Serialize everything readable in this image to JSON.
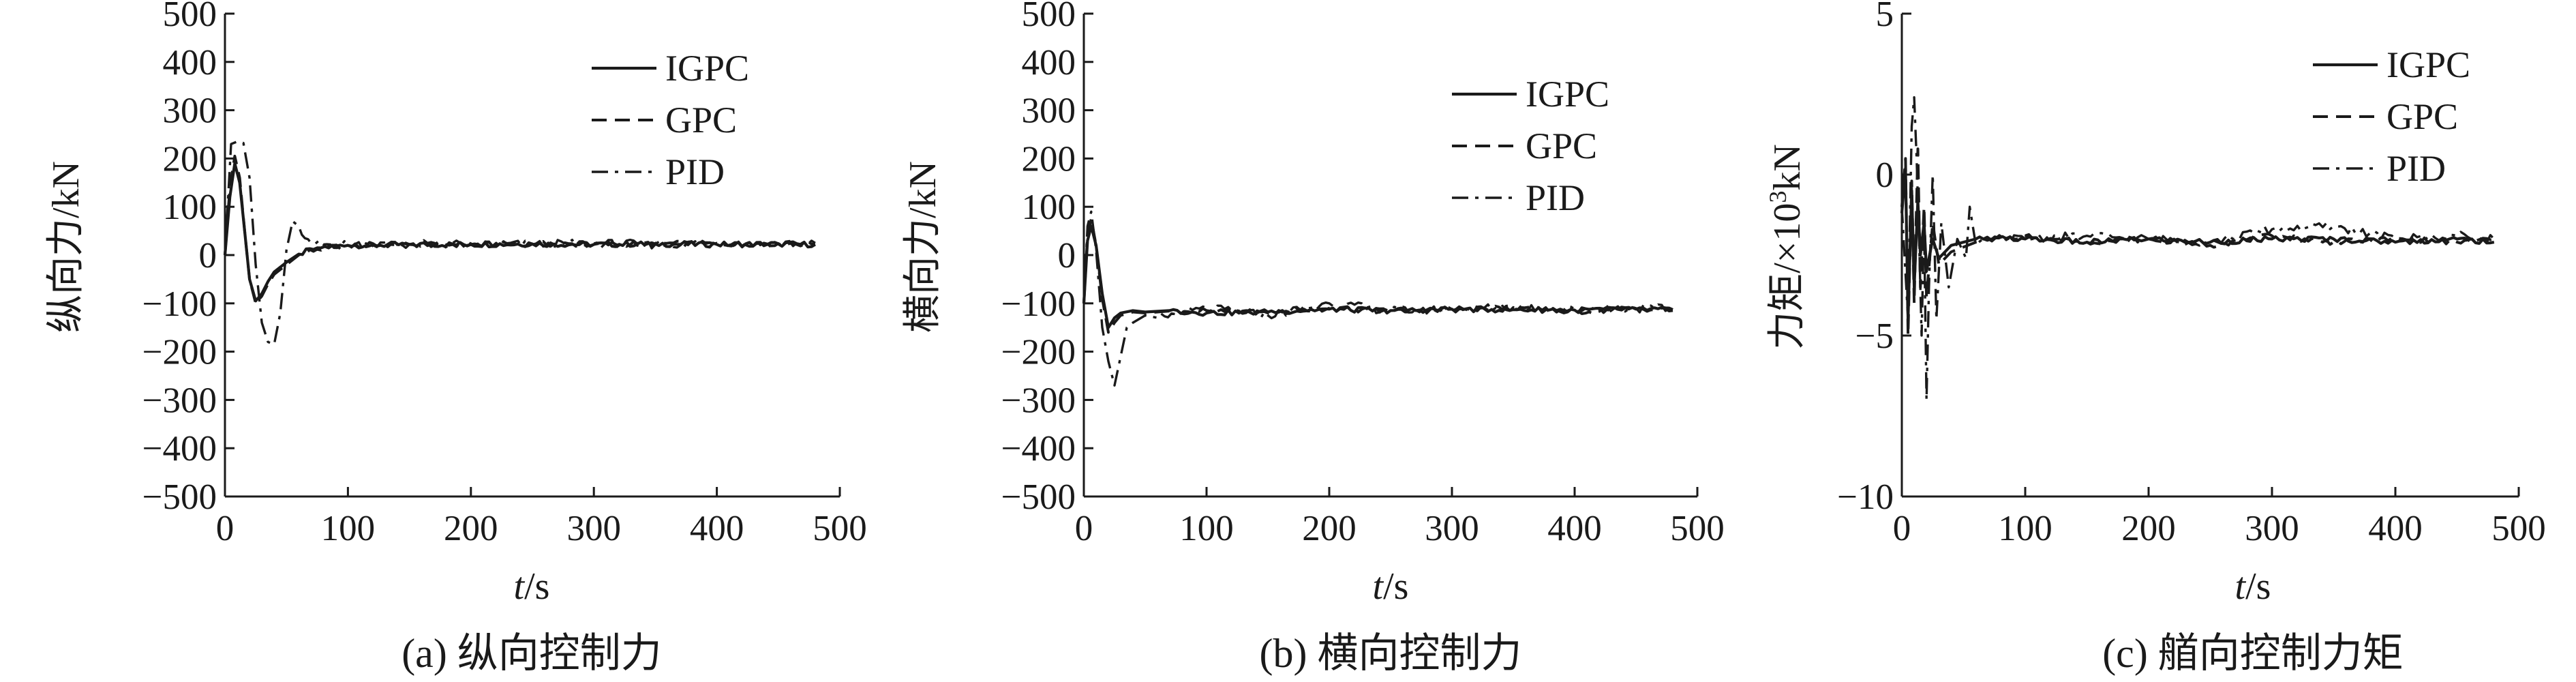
{
  "colors": {
    "ink": "#1a1a1a",
    "background": "#ffffff"
  },
  "chart_data": [
    {
      "type": "line",
      "caption": "(a) 纵向控制力",
      "xlabel_italic": "t",
      "xlabel_unit": "/s",
      "ylabel": "纵向力/kN",
      "xlim": [
        0,
        500
      ],
      "ylim": [
        -500,
        500
      ],
      "x_ticks": [
        "0",
        "100",
        "200",
        "300",
        "400",
        "500"
      ],
      "y_ticks": [
        "500",
        "400",
        "300",
        "200",
        "100",
        "0",
        "−100",
        "−200",
        "−300",
        "−400",
        "−500"
      ],
      "legend_position": "top-right",
      "grid": false,
      "series": [
        {
          "name": "IGPC",
          "style": "solid",
          "x": [
            0,
            4,
            8,
            12,
            16,
            20,
            25,
            30,
            35,
            40,
            50,
            60,
            75,
            100,
            150,
            200,
            250,
            300,
            350,
            400,
            450,
            480
          ],
          "y": [
            0,
            120,
            190,
            150,
            50,
            -50,
            -95,
            -80,
            -55,
            -35,
            -15,
            2,
            15,
            20,
            22,
            22,
            23,
            22,
            23,
            22,
            23,
            22
          ]
        },
        {
          "name": "GPC",
          "style": "dashed",
          "x": [
            0,
            4,
            8,
            12,
            16,
            20,
            25,
            30,
            35,
            40,
            50,
            60,
            75,
            100,
            150,
            200,
            250,
            300,
            350,
            400,
            450,
            480
          ],
          "y": [
            0,
            140,
            205,
            160,
            50,
            -50,
            -100,
            -85,
            -60,
            -40,
            -20,
            0,
            12,
            20,
            22,
            22,
            23,
            22,
            24,
            23,
            24,
            23
          ]
        },
        {
          "name": "PID",
          "style": "dashdot",
          "x": [
            0,
            5,
            10,
            15,
            20,
            25,
            30,
            35,
            40,
            45,
            50,
            55,
            60,
            65,
            70,
            80,
            100,
            150,
            200,
            250,
            300,
            350,
            400,
            450,
            480
          ],
          "y": [
            0,
            230,
            235,
            232,
            160,
            -20,
            -140,
            -180,
            -185,
            -120,
            10,
            70,
            60,
            35,
            25,
            22,
            22,
            22,
            23,
            22,
            24,
            22,
            25,
            24,
            25
          ]
        }
      ]
    },
    {
      "type": "line",
      "caption": "(b) 横向控制力",
      "xlabel_italic": "t",
      "xlabel_unit": "/s",
      "ylabel": "横向力/kN",
      "xlim": [
        0,
        500
      ],
      "ylim": [
        -500,
        500
      ],
      "x_ticks": [
        "0",
        "100",
        "200",
        "300",
        "400",
        "500"
      ],
      "y_ticks": [
        "500",
        "400",
        "300",
        "200",
        "100",
        "0",
        "−100",
        "−200",
        "−300",
        "−400",
        "−500"
      ],
      "legend_position": "top-right",
      "grid": false,
      "series": [
        {
          "name": "IGPC",
          "style": "solid",
          "x": [
            0,
            3,
            6,
            10,
            15,
            20,
            25,
            30,
            40,
            50,
            70,
            100,
            150,
            200,
            250,
            300,
            350,
            400,
            450,
            480
          ],
          "y": [
            -100,
            30,
            60,
            20,
            -80,
            -150,
            -130,
            -120,
            -115,
            -118,
            -115,
            -120,
            -118,
            -112,
            -115,
            -112,
            -113,
            -114,
            -112,
            -113
          ]
        },
        {
          "name": "GPC",
          "style": "dashed",
          "x": [
            0,
            3,
            6,
            10,
            15,
            20,
            25,
            30,
            40,
            50,
            70,
            100,
            150,
            200,
            250,
            300,
            350,
            400,
            450,
            480
          ],
          "y": [
            -100,
            40,
            75,
            20,
            -90,
            -160,
            -140,
            -125,
            -118,
            -120,
            -116,
            -115,
            -120,
            -110,
            -116,
            -112,
            -108,
            -118,
            -110,
            -115
          ]
        },
        {
          "name": "PID",
          "style": "dashdot",
          "x": [
            0,
            3,
            6,
            10,
            15,
            20,
            25,
            30,
            35,
            40,
            50,
            60,
            80,
            100,
            150,
            200,
            250,
            300,
            350,
            400,
            450,
            480
          ],
          "y": [
            -100,
            60,
            90,
            10,
            -150,
            -220,
            -270,
            -210,
            -150,
            -140,
            -125,
            -130,
            -120,
            -110,
            -125,
            -100,
            -115,
            -112,
            -108,
            -112,
            -110,
            -112
          ]
        }
      ]
    },
    {
      "type": "line",
      "caption": "(c) 艏向控制力矩",
      "xlabel_italic": "t",
      "xlabel_unit": "/s",
      "ylabel_main": "力矩/×10",
      "ylabel_sup": "3",
      "ylabel_tail": "kN",
      "xlim": [
        0,
        500
      ],
      "ylim": [
        -10,
        5
      ],
      "x_ticks": [
        "0",
        "100",
        "200",
        "300",
        "400",
        "500"
      ],
      "y_ticks": [
        "5",
        "0",
        "−5",
        "−10"
      ],
      "legend_position": "top-right",
      "grid": false,
      "series": [
        {
          "name": "IGPC",
          "style": "solid",
          "x": [
            0,
            3,
            5,
            8,
            10,
            13,
            15,
            18,
            20,
            25,
            30,
            40,
            60,
            100,
            150,
            200,
            250,
            300,
            350,
            400,
            450,
            480
          ],
          "y": [
            -1.2,
            0.2,
            -4.5,
            -0.5,
            -3.5,
            -0.8,
            -2.5,
            -1.5,
            -3.0,
            -2.0,
            -2.6,
            -2.2,
            -2.0,
            -2.0,
            -2.1,
            -2.0,
            -2.1,
            -2.0,
            -2.0,
            -2.1,
            -2.0,
            -2.1
          ]
        },
        {
          "name": "GPC",
          "style": "dashed",
          "x": [
            0,
            3,
            5,
            8,
            10,
            13,
            15,
            18,
            20,
            25,
            30,
            40,
            60,
            100,
            150,
            200,
            250,
            300,
            350,
            400,
            450,
            480
          ],
          "y": [
            -1.0,
            0.5,
            -5.0,
            -0.2,
            -4.0,
            0.8,
            -3.5,
            -1.0,
            -3.8,
            -1.5,
            -2.8,
            -2.4,
            -2.1,
            -1.9,
            -2.1,
            -2.0,
            -2.2,
            -1.9,
            -2.1,
            -2.0,
            -2.1,
            -2.0
          ]
        },
        {
          "name": "PID",
          "style": "dashdot",
          "x": [
            0,
            5,
            8,
            10,
            12,
            14,
            16,
            18,
            20,
            22,
            25,
            28,
            32,
            38,
            45,
            52,
            55,
            60,
            70,
            100,
            150,
            200,
            250,
            300,
            350,
            400,
            450,
            480
          ],
          "y": [
            -1.0,
            -4.5,
            1.5,
            2.4,
            0.5,
            -2.0,
            -5.0,
            -1.5,
            -7.0,
            -3.5,
            0.0,
            -4.5,
            -1.5,
            -3.5,
            -2.0,
            -2.6,
            -1.0,
            -2.2,
            -2.0,
            -2.0,
            -1.9,
            -2.0,
            -2.1,
            -1.7,
            -1.6,
            -2.0,
            -1.9,
            -2.0
          ]
        }
      ]
    }
  ]
}
